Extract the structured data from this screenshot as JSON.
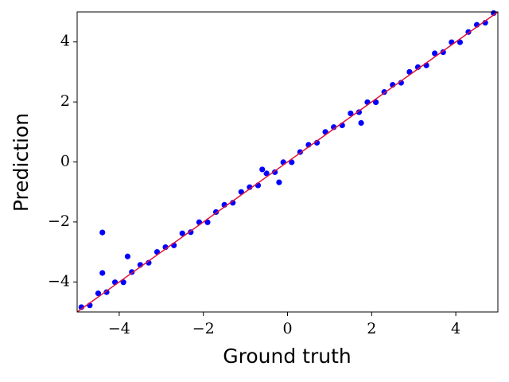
{
  "chart_data": {
    "type": "scatter",
    "xlabel": "Ground truth",
    "ylabel": "Prediction",
    "xlim": [
      -5,
      5
    ],
    "ylim": [
      -5,
      5
    ],
    "xticks": [
      {
        "value": -4,
        "label": "−4"
      },
      {
        "value": -2,
        "label": "−2"
      },
      0,
      2,
      4
    ],
    "yticks": [
      {
        "value": -4,
        "label": "−4"
      },
      {
        "value": -2,
        "label": "−2"
      },
      0,
      2,
      4
    ],
    "color": "#0000ff",
    "reference_line": {
      "x": [
        -5,
        5
      ],
      "y": [
        -5,
        5
      ],
      "color": "#dc143c"
    },
    "x": [
      -4.9,
      -4.7,
      -4.5,
      -4.3,
      -4.1,
      -3.9,
      -3.7,
      -3.5,
      -3.3,
      -3.1,
      -2.9,
      -2.7,
      -2.5,
      -2.3,
      -2.1,
      -1.9,
      -1.7,
      -1.5,
      -1.3,
      -1.1,
      -0.9,
      -0.7,
      -0.5,
      -0.3,
      -0.1,
      0.1,
      0.3,
      0.5,
      0.7,
      0.9,
      1.1,
      1.3,
      1.5,
      1.7,
      1.9,
      2.1,
      2.3,
      2.5,
      2.7,
      2.9,
      3.1,
      3.3,
      3.5,
      3.7,
      3.9,
      4.1,
      4.3,
      4.5,
      4.7,
      4.9,
      -4.4,
      -4.4,
      -3.8,
      -0.2,
      1.75,
      -0.6
    ],
    "values": [
      -4.84,
      -4.78,
      -4.38,
      -4.34,
      -4.01,
      -4.01,
      -3.67,
      -3.43,
      -3.36,
      -3.0,
      -2.84,
      -2.78,
      -2.38,
      -2.34,
      -2.01,
      -2.01,
      -1.67,
      -1.43,
      -1.36,
      -1.0,
      -0.84,
      -0.78,
      -0.38,
      -0.34,
      -0.01,
      -0.01,
      0.33,
      0.57,
      0.64,
      1.0,
      1.16,
      1.22,
      1.62,
      1.66,
      1.99,
      1.99,
      2.33,
      2.57,
      2.64,
      3.0,
      3.16,
      3.22,
      3.62,
      3.66,
      3.99,
      3.99,
      4.33,
      4.57,
      4.64,
      4.96,
      -2.35,
      -3.7,
      -3.15,
      -0.68,
      1.3,
      -0.25
    ]
  }
}
